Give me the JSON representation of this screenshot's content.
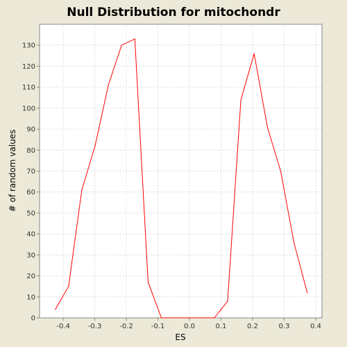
{
  "chart_data": {
    "type": "line",
    "title": "Null Distribution for mitochondr",
    "xlabel": "ES",
    "ylabel": "# of random values",
    "xlim": [
      -0.475,
      0.42
    ],
    "ylim": [
      0,
      140
    ],
    "x_ticks": [
      -0.4,
      -0.3,
      -0.2,
      -0.1,
      0.0,
      0.1,
      0.2,
      0.3,
      0.4
    ],
    "x_tick_labels": [
      "-0.4",
      "-0.3",
      "-0.2",
      "-0.1",
      "0.0",
      "0.1",
      "0.2",
      "0.3",
      "0.4"
    ],
    "y_ticks": [
      0,
      10,
      20,
      30,
      40,
      50,
      60,
      70,
      80,
      90,
      100,
      110,
      120,
      130
    ],
    "y_tick_labels": [
      "0",
      "10",
      "20",
      "30",
      "40",
      "50",
      "60",
      "70",
      "80",
      "90",
      "100",
      "110",
      "120",
      "130"
    ],
    "grid": true,
    "line_color": "#ff0000",
    "series": [
      {
        "x": [
          -0.425,
          -0.383,
          -0.341,
          -0.299,
          -0.257,
          -0.215,
          -0.173,
          -0.131,
          -0.089,
          -0.047,
          -0.005,
          0.037,
          0.079,
          0.121,
          0.163,
          0.205,
          0.247,
          0.289,
          0.331,
          0.373
        ],
        "values": [
          4,
          15,
          61,
          82,
          111,
          130,
          133,
          17,
          0,
          0,
          0,
          0,
          0,
          8,
          104,
          126,
          91,
          70,
          36,
          12
        ]
      }
    ]
  }
}
